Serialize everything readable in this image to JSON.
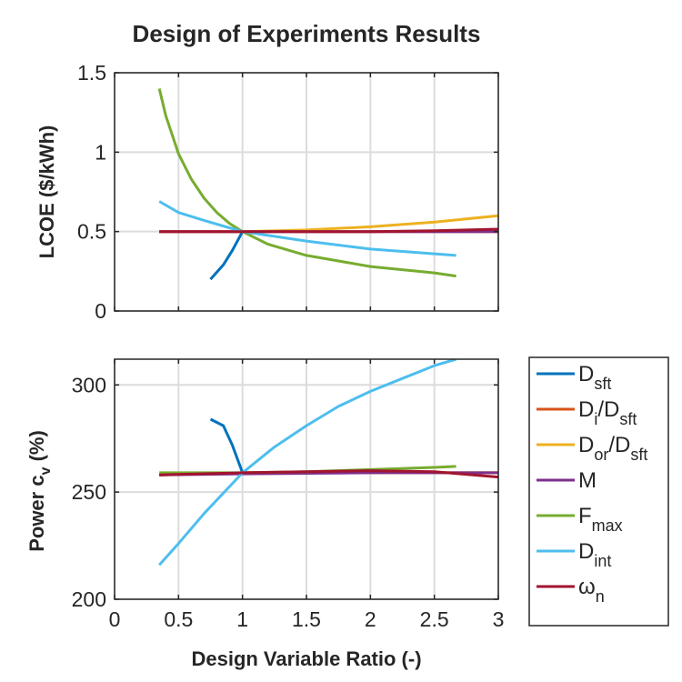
{
  "chart_data": [
    {
      "type": "line",
      "title": "Design of Experiments Results",
      "xlabel": "",
      "ylabel": "LCOE ($/kWh)",
      "xlim": [
        0,
        3
      ],
      "ylim": [
        0,
        1.5
      ],
      "xticks": [
        0,
        0.5,
        1,
        1.5,
        2,
        2.5,
        3
      ],
      "yticks": [
        0,
        0.5,
        1,
        1.5
      ],
      "xtick_labels": [
        "",
        "",
        "",
        "",
        "",
        "",
        ""
      ],
      "ytick_labels": [
        "0",
        "0.5",
        "1",
        "1.5"
      ],
      "grid": true,
      "series": [
        {
          "name": "D_sft",
          "color": "#0072BD",
          "x": [
            0.75,
            0.85,
            0.92,
            1.0
          ],
          "y": [
            0.2,
            0.29,
            0.38,
            0.5
          ]
        },
        {
          "name": "D_i/D_sft",
          "color": "#D95319",
          "x": [
            0.35,
            1.0,
            2.0,
            3.0
          ],
          "y": [
            0.5,
            0.5,
            0.5,
            0.5
          ]
        },
        {
          "name": "D_or/D_sft",
          "color": "#EDB120",
          "x": [
            0.35,
            0.7,
            1.0,
            1.5,
            2.0,
            2.5,
            3.0
          ],
          "y": [
            0.5,
            0.5,
            0.5,
            0.51,
            0.53,
            0.56,
            0.6
          ]
        },
        {
          "name": "M",
          "color": "#7E2F8E",
          "x": [
            0.35,
            1.0,
            2.0,
            3.0
          ],
          "y": [
            0.5,
            0.5,
            0.5,
            0.5
          ]
        },
        {
          "name": "F_max",
          "color": "#77AC30",
          "x": [
            0.35,
            0.4,
            0.5,
            0.6,
            0.7,
            0.8,
            0.9,
            1.0,
            1.2,
            1.5,
            2.0,
            2.5,
            2.67
          ],
          "y": [
            1.4,
            1.23,
            0.99,
            0.83,
            0.71,
            0.62,
            0.55,
            0.5,
            0.42,
            0.35,
            0.28,
            0.24,
            0.22
          ]
        },
        {
          "name": "D_int",
          "color": "#4DBEEE",
          "x": [
            0.35,
            0.5,
            0.7,
            1.0,
            1.5,
            2.0,
            2.5,
            2.67
          ],
          "y": [
            0.69,
            0.62,
            0.57,
            0.5,
            0.44,
            0.39,
            0.36,
            0.35
          ]
        },
        {
          "name": "ω_n",
          "color": "#A2142F",
          "x": [
            0.35,
            1.0,
            2.0,
            2.5,
            3.0
          ],
          "y": [
            0.5,
            0.5,
            0.5,
            0.505,
            0.515
          ]
        }
      ]
    },
    {
      "type": "line",
      "title": "",
      "xlabel": "Design Variable Ratio (-)",
      "ylabel": "Power c_v (%)",
      "xlim": [
        0,
        3
      ],
      "ylim": [
        200,
        312
      ],
      "xticks": [
        0,
        0.5,
        1,
        1.5,
        2,
        2.5,
        3
      ],
      "yticks": [
        200,
        250,
        300
      ],
      "xtick_labels": [
        "0",
        "0.5",
        "1",
        "1.5",
        "2",
        "2.5",
        "3"
      ],
      "ytick_labels": [
        "200",
        "250",
        "300"
      ],
      "grid": true,
      "series": [
        {
          "name": "D_sft",
          "color": "#0072BD",
          "x": [
            0.75,
            0.85,
            0.92,
            1.0
          ],
          "y": [
            284,
            281,
            272,
            259
          ]
        },
        {
          "name": "D_i/D_sft",
          "color": "#D95319",
          "x": [
            0.35,
            1.0,
            2.0,
            3.0
          ],
          "y": [
            258,
            259,
            259,
            259
          ]
        },
        {
          "name": "D_or/D_sft",
          "color": "#EDB120",
          "x": [
            0.35,
            1.0,
            2.0,
            3.0
          ],
          "y": [
            258,
            259,
            259,
            259
          ]
        },
        {
          "name": "M",
          "color": "#7E2F8E",
          "x": [
            0.35,
            1.0,
            2.0,
            3.0
          ],
          "y": [
            258,
            258.5,
            259,
            259
          ]
        },
        {
          "name": "F_max",
          "color": "#77AC30",
          "x": [
            0.35,
            1.0,
            1.5,
            2.0,
            2.5,
            2.67
          ],
          "y": [
            259,
            259,
            259.5,
            260.5,
            261.5,
            262
          ]
        },
        {
          "name": "D_int",
          "color": "#4DBEEE",
          "x": [
            0.35,
            0.5,
            0.7,
            1.0,
            1.25,
            1.5,
            1.75,
            2.0,
            2.25,
            2.5,
            2.67
          ],
          "y": [
            216,
            226,
            240,
            259,
            271,
            281,
            290,
            297,
            303,
            309,
            312
          ]
        },
        {
          "name": "ω_n",
          "color": "#A2142F",
          "x": [
            0.35,
            1.0,
            1.5,
            2.0,
            2.5,
            3.0
          ],
          "y": [
            258,
            259,
            259.5,
            260,
            259.5,
            257
          ]
        }
      ]
    }
  ],
  "legend": {
    "placement": "right",
    "entries": [
      {
        "main": "D",
        "sub": "sft",
        "rest": "",
        "rest_sub": "",
        "color": "#0072BD"
      },
      {
        "main": "D",
        "sub": "i",
        "rest": "/D",
        "rest_sub": "sft",
        "color": "#D95319"
      },
      {
        "main": "D",
        "sub": "or",
        "rest": "/D",
        "rest_sub": "sft",
        "color": "#EDB120"
      },
      {
        "main": "M",
        "sub": "",
        "rest": "",
        "rest_sub": "",
        "color": "#7E2F8E"
      },
      {
        "main": "F",
        "sub": "max",
        "rest": "",
        "rest_sub": "",
        "color": "#77AC30"
      },
      {
        "main": "D",
        "sub": "int",
        "rest": "",
        "rest_sub": "",
        "color": "#4DBEEE"
      },
      {
        "main": "ω",
        "sub": "n",
        "rest": "",
        "rest_sub": "",
        "color": "#A2142F"
      }
    ]
  }
}
